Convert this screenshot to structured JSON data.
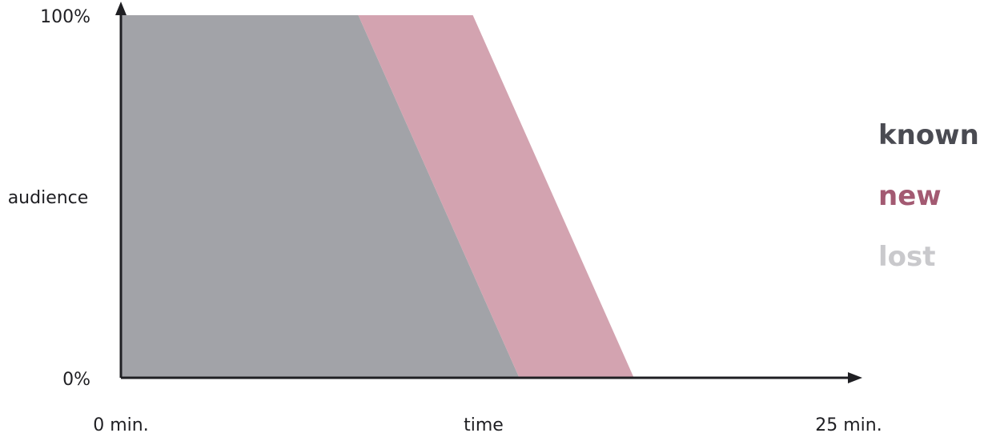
{
  "chart_data": {
    "type": "area",
    "xlabel": "time",
    "ylabel": "audience",
    "xlim": [
      0,
      25
    ],
    "ylim": [
      0,
      100
    ],
    "x_tick_labels": {
      "start": "0 min.",
      "end": "25 min."
    },
    "y_tick_labels": {
      "start": "0%",
      "end": "100%"
    },
    "grid": false,
    "legend_position": "right",
    "series": [
      {
        "name": "known",
        "color": "#a2a3a8",
        "x": [
          0,
          8.7,
          14.6
        ],
        "y": [
          100,
          100,
          0
        ]
      },
      {
        "name": "new",
        "color": "#d3a3b0",
        "x": [
          8.7,
          12.9,
          18.8,
          14.6
        ],
        "y": [
          100,
          100,
          0,
          0
        ]
      }
    ],
    "legend": [
      {
        "label": "known",
        "color": "#4a4b52"
      },
      {
        "label": "new",
        "color": "#a35a72"
      },
      {
        "label": "lost",
        "color": "#c9c9cc"
      }
    ]
  }
}
